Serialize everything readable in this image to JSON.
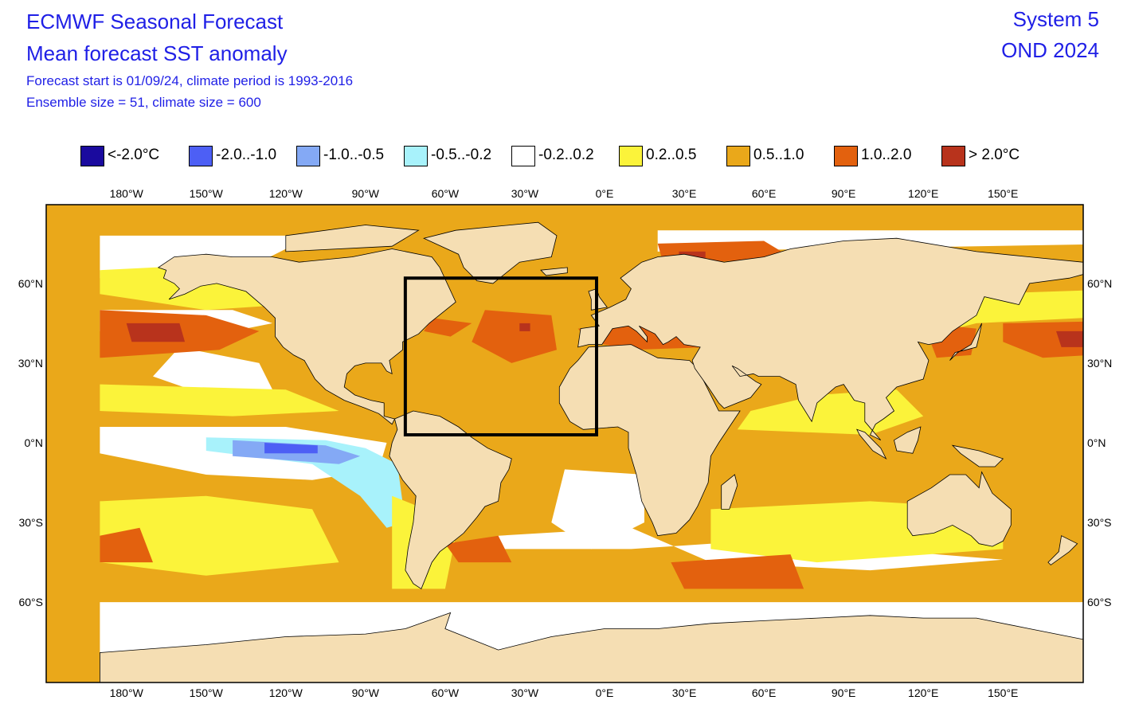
{
  "header": {
    "title": "ECMWF Seasonal Forecast",
    "subtitle": "Mean forecast SST anomaly",
    "forecast_info": "Forecast start is 01/09/24, climate period is 1993-2016",
    "ensemble_info": "Ensemble size = 51, climate size = 600",
    "system": "System 5",
    "period": "OND 2024"
  },
  "legend": [
    {
      "label": "<-2.0°C",
      "color": "#1a0a9e"
    },
    {
      "label": "-2.0..-1.0",
      "color": "#4d5ff5"
    },
    {
      "label": "-1.0..-0.5",
      "color": "#84a9f5"
    },
    {
      "label": "-0.5..-0.2",
      "color": "#a8f2fb"
    },
    {
      "label": "-0.2..0.2",
      "color": "#ffffff"
    },
    {
      "label": "0.2..0.5",
      "color": "#fbf33a"
    },
    {
      "label": "0.5..1.0",
      "color": "#eaa81a"
    },
    {
      "label": "1.0..2.0",
      "color": "#e3610e"
    },
    {
      "label": "> 2.0°C",
      "color": "#b8331c"
    }
  ],
  "colors": {
    "land": "#f5deb3",
    "ocean_base": "#eaa81a",
    "box": "#000000"
  },
  "axes": {
    "lon_ticks": [
      "180°W",
      "150°W",
      "120°W",
      "90°W",
      "60°W",
      "30°W",
      "0°E",
      "30°E",
      "60°E",
      "90°E",
      "120°E",
      "150°E"
    ],
    "lat_ticks": [
      "60°N",
      "30°N",
      "0°N",
      "30°S",
      "60°S"
    ]
  },
  "region_box": {
    "lon_range": [
      -75,
      -3
    ],
    "lat_range": [
      3,
      62
    ]
  }
}
